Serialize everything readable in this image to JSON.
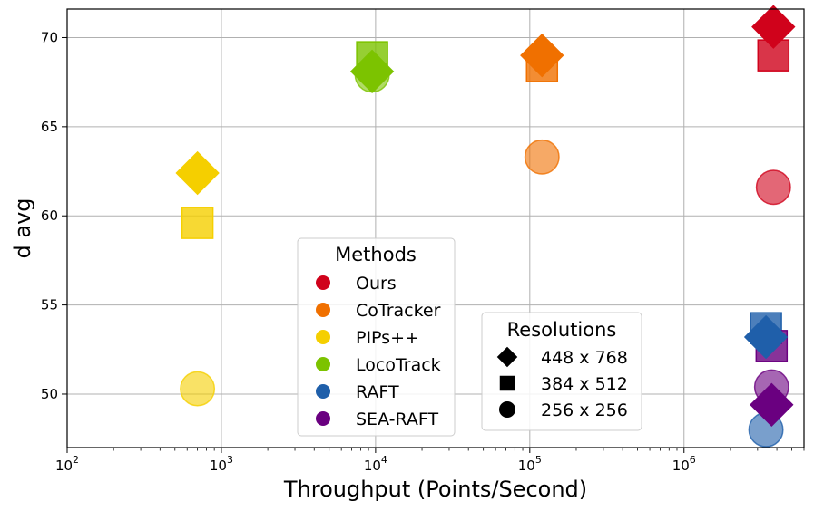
{
  "chart_data": {
    "type": "scatter",
    "title": "",
    "xlabel": "Throughput (Points/Second)",
    "ylabel": "d avg",
    "x_scale": "log",
    "xlim": [
      100,
      6000000
    ],
    "ylim": [
      47,
      71.6
    ],
    "grid": true,
    "x_ticks": [
      {
        "value": 100,
        "base": "10",
        "exp": "2"
      },
      {
        "value": 1000,
        "base": "10",
        "exp": "3"
      },
      {
        "value": 10000,
        "base": "10",
        "exp": "4"
      },
      {
        "value": 100000,
        "base": "10",
        "exp": "5"
      },
      {
        "value": 1000000,
        "base": "10",
        "exp": "6"
      }
    ],
    "y_ticks": [
      {
        "value": 50,
        "label": "50"
      },
      {
        "value": 55,
        "label": "55"
      },
      {
        "value": 60,
        "label": "60"
      },
      {
        "value": 65,
        "label": "65"
      },
      {
        "value": 70,
        "label": "70"
      }
    ],
    "methods_legend": {
      "title": "Methods",
      "placement": "lower-center",
      "entries": [
        {
          "label": "Ours",
          "color": "#d0021b"
        },
        {
          "label": "CoTracker",
          "color": "#f07000"
        },
        {
          "label": "PIPs++",
          "color": "#f5cf00"
        },
        {
          "label": "LocoTrack",
          "color": "#7cc300"
        },
        {
          "label": "RAFT",
          "color": "#1f5faa"
        },
        {
          "label": "SEA-RAFT",
          "color": "#6a0080"
        }
      ]
    },
    "resolutions_legend": {
      "title": "Resolutions",
      "placement": "lower-right",
      "entries": [
        {
          "label": "448 x 768",
          "shape": "diamond"
        },
        {
          "label": "384 x 512",
          "shape": "square"
        },
        {
          "label": "256 x 256",
          "shape": "circle"
        }
      ]
    },
    "points": [
      {
        "method": "PIPs++",
        "resolution": "256 x 256",
        "shape": "circle",
        "x": 700,
        "y": 50.3,
        "color": "#f5cf00",
        "alpha": 0.6
      },
      {
        "method": "PIPs++",
        "resolution": "384 x 512",
        "shape": "square",
        "x": 700,
        "y": 59.6,
        "color": "#f5cf00",
        "alpha": 0.8
      },
      {
        "method": "PIPs++",
        "resolution": "448 x 768",
        "shape": "diamond",
        "x": 700,
        "y": 62.4,
        "color": "#f5cf00",
        "alpha": 1.0
      },
      {
        "method": "LocoTrack",
        "resolution": "256 x 256",
        "shape": "circle",
        "x": 9500,
        "y": 67.9,
        "color": "#7cc300",
        "alpha": 0.6
      },
      {
        "method": "LocoTrack",
        "resolution": "384 x 512",
        "shape": "square",
        "x": 9500,
        "y": 68.9,
        "color": "#7cc300",
        "alpha": 0.8
      },
      {
        "method": "LocoTrack",
        "resolution": "448 x 768",
        "shape": "diamond",
        "x": 9500,
        "y": 68.1,
        "color": "#7cc300",
        "alpha": 1.0
      },
      {
        "method": "CoTracker",
        "resolution": "256 x 256",
        "shape": "circle",
        "x": 120000,
        "y": 63.3,
        "color": "#f07000",
        "alpha": 0.6
      },
      {
        "method": "CoTracker",
        "resolution": "384 x 512",
        "shape": "square",
        "x": 120000,
        "y": 68.4,
        "color": "#f07000",
        "alpha": 0.8
      },
      {
        "method": "CoTracker",
        "resolution": "448 x 768",
        "shape": "diamond",
        "x": 120000,
        "y": 69.0,
        "color": "#f07000",
        "alpha": 1.0
      },
      {
        "method": "Ours",
        "resolution": "256 x 256",
        "shape": "circle",
        "x": 3800000,
        "y": 61.6,
        "color": "#d0021b",
        "alpha": 0.6
      },
      {
        "method": "Ours",
        "resolution": "384 x 512",
        "shape": "square",
        "x": 3800000,
        "y": 69.0,
        "color": "#d0021b",
        "alpha": 0.8
      },
      {
        "method": "Ours",
        "resolution": "448 x 768",
        "shape": "diamond",
        "x": 3800000,
        "y": 70.6,
        "color": "#d0021b",
        "alpha": 1.0
      },
      {
        "method": "RAFT",
        "resolution": "256 x 256",
        "shape": "circle",
        "x": 3400000,
        "y": 48.0,
        "color": "#1f5faa",
        "alpha": 0.6
      },
      {
        "method": "RAFT",
        "resolution": "384 x 512",
        "shape": "square",
        "x": 3400000,
        "y": 53.7,
        "color": "#1f5faa",
        "alpha": 0.8
      },
      {
        "method": "RAFT",
        "resolution": "448 x 768",
        "shape": "diamond",
        "x": 3400000,
        "y": 53.2,
        "color": "#1f5faa",
        "alpha": 1.0
      },
      {
        "method": "SEA-RAFT",
        "resolution": "256 x 256",
        "shape": "circle",
        "x": 3700000,
        "y": 50.4,
        "color": "#6a0080",
        "alpha": 0.6
      },
      {
        "method": "SEA-RAFT",
        "resolution": "384 x 512",
        "shape": "square",
        "x": 3700000,
        "y": 52.7,
        "color": "#6a0080",
        "alpha": 0.8
      },
      {
        "method": "SEA-RAFT",
        "resolution": "448 x 768",
        "shape": "diamond",
        "x": 3700000,
        "y": 49.4,
        "color": "#6a0080",
        "alpha": 1.0
      }
    ]
  }
}
